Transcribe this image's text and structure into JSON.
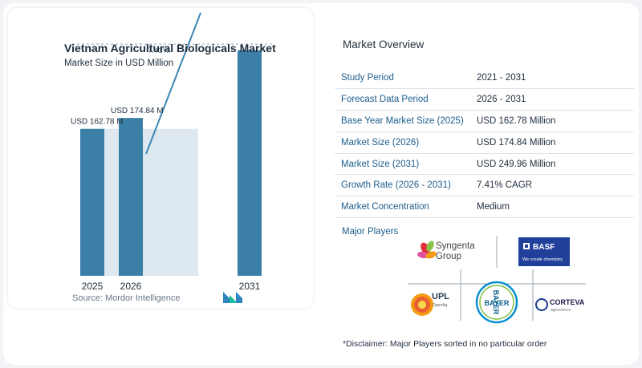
{
  "chart_data": {
    "type": "bar",
    "title": "Vietnam Agricultural Biologicals Market",
    "subtitle": "Market Size in USD Million",
    "categories": [
      "2025",
      "2026",
      "2031"
    ],
    "values": [
      162.78,
      174.84,
      249.96
    ],
    "data_labels": [
      "USD 162.78 M",
      "USD 174.84 M",
      ""
    ],
    "cagr_label": "7.41%",
    "ylim": [
      0,
      270
    ],
    "grid": false,
    "colors": {
      "bar": "#3b7ea6",
      "band": "#dde8f1",
      "band_light": "#e9f0f6",
      "line": "#3b86b4"
    }
  },
  "source": "Source: Mordor Intelligence",
  "overview": {
    "title": "Market Overview",
    "rows": [
      {
        "key": "Study Period",
        "value": "2021 - 2031"
      },
      {
        "key": "Forecast Data Period",
        "value": "2026 - 2031"
      },
      {
        "key": "Base Year Market Size (2025)",
        "value": "USD 162.78 Million"
      },
      {
        "key": "Market Size (2026)",
        "value": "USD 174.84 Million"
      },
      {
        "key": "Market Size (2031)",
        "value": "USD 249.96 Million"
      },
      {
        "key": "Growth Rate (2026 - 2031)",
        "value": "7.41% CAGR"
      },
      {
        "key": "Market Concentration",
        "value": "Medium"
      }
    ]
  },
  "players": {
    "title": "Major Players",
    "syngenta": {
      "line1": "Syngenta",
      "line2": "Group"
    },
    "basf": {
      "name": "BASF",
      "tagline": "We create chemistry"
    },
    "upl": {
      "name": "UPL",
      "tagline": "OpenAg"
    },
    "bayer": {
      "name": "BAYER"
    },
    "corteva": {
      "name": "CORTEVA",
      "tagline": "agriscience"
    }
  },
  "disclaimer": "*Disclaimer: Major Players sorted in no particular order"
}
